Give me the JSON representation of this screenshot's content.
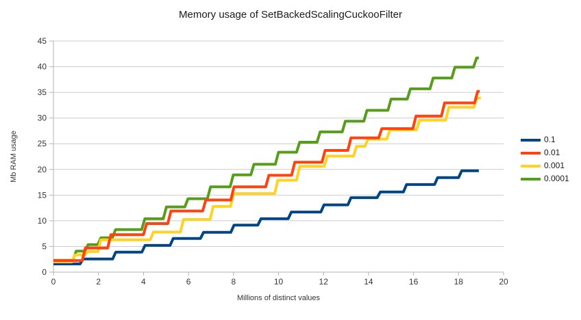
{
  "chart_data": {
    "type": "line",
    "line_style": "staircase",
    "title": "Memory usage of SetBackedScalingCuckooFilter",
    "xlabel": "Millions of distinct values",
    "ylabel": "Mb RAM usage",
    "xlim": [
      0,
      20
    ],
    "ylim": [
      0,
      45
    ],
    "x_ticks": [
      0,
      2,
      4,
      6,
      8,
      10,
      12,
      14,
      16,
      18,
      20
    ],
    "y_ticks": [
      0,
      5,
      10,
      15,
      20,
      25,
      30,
      35,
      40,
      45
    ],
    "grid": "horizontal",
    "legend_position": "right",
    "colors": {
      "grid": "#cccccc",
      "axis": "#b3b3b3",
      "text": "#333333",
      "title": "#1a1a1a"
    },
    "draw_order": [
      0,
      3,
      2,
      1
    ],
    "series": [
      {
        "name": "0.1",
        "color": "#004586",
        "x_end": 18.9,
        "steps": [
          [
            0,
            1.6
          ],
          [
            1.25,
            2.55
          ],
          [
            2.7,
            3.9
          ],
          [
            4.0,
            5.2
          ],
          [
            5.25,
            6.55
          ],
          [
            6.6,
            7.75
          ],
          [
            7.95,
            9.15
          ],
          [
            9.15,
            10.4
          ],
          [
            10.5,
            11.7
          ],
          [
            11.95,
            13.1
          ],
          [
            13.15,
            14.5
          ],
          [
            14.45,
            15.6
          ],
          [
            15.62,
            17.05
          ],
          [
            17.0,
            18.4
          ],
          [
            18.07,
            19.75
          ]
        ]
      },
      {
        "name": "0.01",
        "color": "#ff420e",
        "x_end": 18.94,
        "steps": [
          [
            0,
            2.25
          ],
          [
            1.35,
            4.7
          ],
          [
            2.48,
            7.3
          ],
          [
            4.07,
            9.45
          ],
          [
            5.15,
            11.9
          ],
          [
            6.7,
            14.05
          ],
          [
            7.95,
            16.6
          ],
          [
            9.5,
            18.85
          ],
          [
            10.65,
            21.4
          ],
          [
            12.0,
            23.7
          ],
          [
            13.15,
            26.15
          ],
          [
            14.52,
            27.95
          ],
          [
            16.04,
            30.4
          ],
          [
            17.31,
            32.95
          ],
          [
            18.78,
            35.2
          ]
        ]
      },
      {
        "name": "0.001",
        "color": "#ffd320",
        "x_end": 18.99,
        "steps": [
          [
            0,
            2.0
          ],
          [
            0.89,
            3.35
          ],
          [
            1.47,
            4.0
          ],
          [
            2.04,
            6.3
          ],
          [
            4.37,
            7.8
          ],
          [
            5.71,
            10.25
          ],
          [
            7.03,
            12.8
          ],
          [
            7.94,
            15.3
          ],
          [
            9.9,
            17.9
          ],
          [
            10.87,
            20.6
          ],
          [
            12.1,
            22.6
          ],
          [
            13.4,
            24.5
          ],
          [
            13.91,
            25.9
          ],
          [
            14.88,
            27.7
          ],
          [
            16.2,
            29.6
          ],
          [
            17.5,
            32.1
          ],
          [
            18.75,
            33.9
          ]
        ]
      },
      {
        "name": "0.0001",
        "color": "#579d1c",
        "x_end": 18.9,
        "steps": [
          [
            0,
            2.3
          ],
          [
            0.94,
            4.1
          ],
          [
            1.47,
            5.35
          ],
          [
            2.04,
            6.7
          ],
          [
            2.69,
            8.3
          ],
          [
            3.99,
            10.4
          ],
          [
            4.95,
            12.7
          ],
          [
            5.91,
            14.3
          ],
          [
            6.91,
            16.6
          ],
          [
            7.92,
            18.95
          ],
          [
            8.84,
            21.0
          ],
          [
            9.93,
            23.35
          ],
          [
            10.87,
            25.3
          ],
          [
            11.78,
            27.3
          ],
          [
            12.9,
            29.4
          ],
          [
            13.86,
            31.5
          ],
          [
            14.93,
            33.7
          ],
          [
            15.79,
            35.7
          ],
          [
            16.8,
            37.8
          ],
          [
            17.77,
            39.9
          ],
          [
            18.73,
            41.7
          ]
        ]
      }
    ]
  }
}
